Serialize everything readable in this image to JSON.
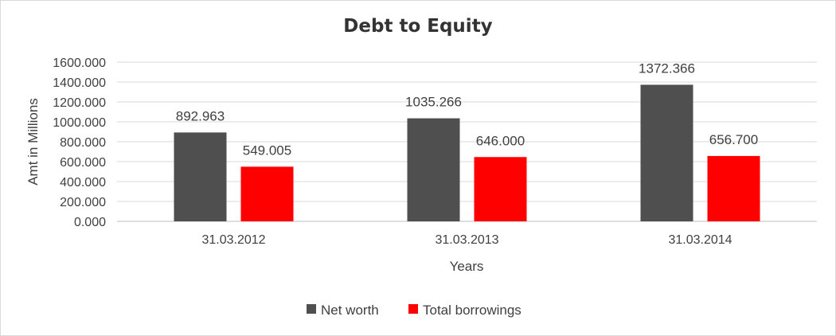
{
  "chart_data": {
    "type": "bar",
    "title": "Debt to Equity",
    "xlabel": "Years",
    "ylabel": "Amt in Millions",
    "categories": [
      "31.03.2012",
      "31.03.2013",
      "31.03.2014"
    ],
    "series": [
      {
        "name": "Net worth",
        "color": "#4f4f4f",
        "values": [
          892.963,
          1035.266,
          1372.366
        ],
        "labels": [
          "892.963",
          "1035.266",
          "1372.366"
        ]
      },
      {
        "name": "Total borrowings",
        "color": "#ff0000",
        "values": [
          549.005,
          646.0,
          656.7
        ],
        "labels": [
          "549.005",
          "646.000",
          "656.700"
        ]
      }
    ],
    "ylim": [
      0,
      1600
    ],
    "yticks": [
      "0.000",
      "200.000",
      "400.000",
      "600.000",
      "800.000",
      "1000.000",
      "1200.000",
      "1400.000",
      "1600.000"
    ],
    "grid": true,
    "legend_position": "bottom"
  }
}
